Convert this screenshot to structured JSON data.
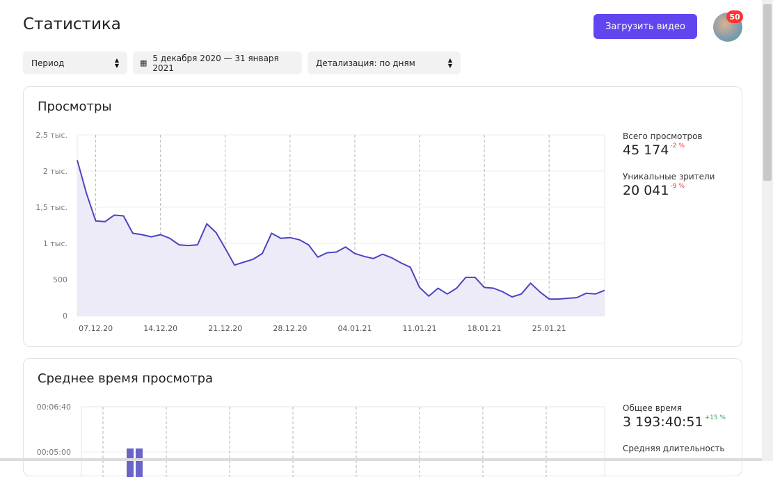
{
  "header": {
    "title": "Статистика",
    "upload_label": "Загрузить видео",
    "notifications_count": "50"
  },
  "filters": {
    "period_label": "Период",
    "date_range": "5 декабря 2020 — 31 января 2021",
    "detail_label": "Детализация: по дням"
  },
  "views_card": {
    "title": "Просмотры",
    "stats": [
      {
        "label": "Всего просмотров",
        "value": "45 174",
        "delta": "-2 %"
      },
      {
        "label": "Уникальные зрители",
        "value": "20 041",
        "delta": "-9 %"
      }
    ]
  },
  "watchtime_card": {
    "title": "Среднее время просмотра",
    "stats": [
      {
        "label": "Общее время",
        "value": "3 193:40:51",
        "delta": "+15 %"
      },
      {
        "label": "Средняя длительность",
        "value": "",
        "delta": ""
      }
    ],
    "y_ticks": [
      "00:06:40",
      "00:05:00"
    ]
  },
  "colors": {
    "accent": "#6146f0",
    "line": "#4b44c3",
    "fill": "#ecebf7",
    "negative": "#e53935",
    "positive": "#2e9e4f"
  },
  "chart_data": [
    {
      "type": "area",
      "title": "Просмотры",
      "x_labels": [
        "07.12.20",
        "14.12.20",
        "21.12.20",
        "28.12.20",
        "04.01.21",
        "11.01.21",
        "18.01.21",
        "25.01.21"
      ],
      "y_ticks": [
        "0",
        "500",
        "1 тыс.",
        "1,5 тыс.",
        "2 тыс.",
        "2,5 тыс."
      ],
      "ylim": [
        0,
        2500
      ],
      "x_start": "05.12.20",
      "x_end": "31.01.21",
      "values": [
        2150,
        1690,
        1310,
        1300,
        1390,
        1380,
        1140,
        1120,
        1090,
        1120,
        1070,
        980,
        970,
        980,
        1270,
        1150,
        930,
        700,
        740,
        780,
        860,
        1140,
        1070,
        1080,
        1050,
        980,
        810,
        870,
        880,
        950,
        860,
        820,
        790,
        850,
        800,
        730,
        670,
        390,
        270,
        380,
        300,
        380,
        530,
        530,
        390,
        380,
        330,
        260,
        300,
        450,
        330,
        230,
        230,
        240,
        250,
        310,
        300,
        350
      ]
    },
    {
      "type": "bar",
      "title": "Среднее время просмотра",
      "y_ticks": [
        "00:06:40",
        "00:05:00"
      ],
      "values": []
    }
  ]
}
